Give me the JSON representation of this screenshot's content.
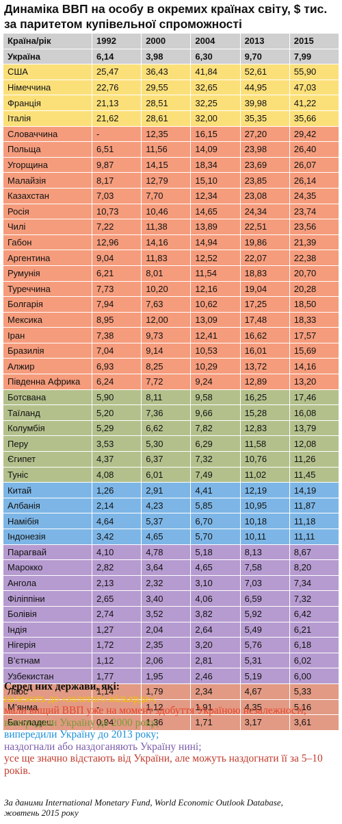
{
  "title": {
    "line1": "Динаміка ВВП на особу в окремих країнах світу, $ тис.",
    "line2": "за паритетом купівельної спроможності"
  },
  "table": {
    "headers": [
      "Країна/рік",
      "1992",
      "2000",
      "2004",
      "2013",
      "2015"
    ],
    "groups": {
      "ukraine": "#cfcfcf",
      "golden": "#fbe07a",
      "before": "#f59c7c",
      "y2000": "#b3c08c",
      "y2013": "#7db6e6",
      "catching": "#b69bd0",
      "future": "#e29a84"
    },
    "rows": [
      {
        "group": "ukraine",
        "cells": [
          "Україна",
          "6,14",
          "3,98",
          "6,30",
          "9,70",
          "7,99"
        ]
      },
      {
        "group": "golden",
        "cells": [
          "США",
          "25,47",
          "36,43",
          "41,84",
          "52,61",
          "55,90"
        ]
      },
      {
        "group": "golden",
        "cells": [
          "Німеччина",
          "22,76",
          "29,55",
          "32,65",
          "44,95",
          "47,03"
        ]
      },
      {
        "group": "golden",
        "cells": [
          "Франція",
          "21,13",
          "28,51",
          "32,25",
          "39,98",
          "41,22"
        ]
      },
      {
        "group": "golden",
        "cells": [
          "Італія",
          "21,62",
          "28,61",
          "32,00",
          "35,35",
          "35,66"
        ]
      },
      {
        "group": "before",
        "cells": [
          "Словаччина",
          "-",
          "12,35",
          "16,15",
          "27,20",
          "29,42"
        ]
      },
      {
        "group": "before",
        "cells": [
          "Польща",
          "6,51",
          "11,56",
          "14,09",
          "23,98",
          "26,40"
        ]
      },
      {
        "group": "before",
        "cells": [
          "Угорщина",
          "9,87",
          "14,15",
          "18,34",
          "23,69",
          "26,07"
        ]
      },
      {
        "group": "before",
        "cells": [
          "Малайзія",
          "8,17",
          "12,79",
          "15,10",
          "23,85",
          "26,14"
        ]
      },
      {
        "group": "before",
        "cells": [
          "Казахстан",
          "7,03",
          "7,70",
          "12,34",
          "23,08",
          "24,35"
        ]
      },
      {
        "group": "before",
        "cells": [
          "Росія",
          "10,73",
          "10,46",
          "14,65",
          "24,34",
          "23,74"
        ]
      },
      {
        "group": "before",
        "cells": [
          "Чилі",
          "7,22",
          "11,38",
          "13,89",
          "22,51",
          "23,56"
        ]
      },
      {
        "group": "before",
        "cells": [
          "Габон",
          "12,96",
          "14,16",
          "14,94",
          "19,86",
          "21,39"
        ]
      },
      {
        "group": "before",
        "cells": [
          "Аргентина",
          "9,04",
          "11,83",
          "12,52",
          "22,07",
          "22,38"
        ]
      },
      {
        "group": "before",
        "cells": [
          "Румунія",
          "6,21",
          "8,01",
          "11,54",
          "18,83",
          "20,70"
        ]
      },
      {
        "group": "before",
        "cells": [
          "Туреччина",
          "7,73",
          "10,20",
          "12,16",
          "19,04",
          "20,28"
        ]
      },
      {
        "group": "before",
        "cells": [
          "Болгарія",
          "7,94",
          "7,63",
          "10,62",
          "17,25",
          "18,50"
        ]
      },
      {
        "group": "before",
        "cells": [
          "Мексика",
          "8,95",
          "12,00",
          "13,09",
          "17,48",
          "18,33"
        ]
      },
      {
        "group": "before",
        "cells": [
          "Іран",
          "7,38",
          "9,73",
          "12,41",
          "16,62",
          "17,57"
        ]
      },
      {
        "group": "before",
        "cells": [
          "Бразилія",
          "7,04",
          "9,14",
          "10,53",
          "16,01",
          "15,69"
        ]
      },
      {
        "group": "before",
        "cells": [
          "Алжир",
          "6,93",
          "8,25",
          "10,29",
          "13,72",
          "14,16"
        ]
      },
      {
        "group": "before",
        "cells": [
          "Південна Африка",
          "6,24",
          "7,72",
          "9,24",
          "12,89",
          "13,20"
        ]
      },
      {
        "group": "y2000",
        "cells": [
          "Ботсвана",
          "5,90",
          "8,11",
          "9,58",
          "16,25",
          "17,46"
        ]
      },
      {
        "group": "y2000",
        "cells": [
          "Таїланд",
          "5,20",
          "7,36",
          "9,66",
          "15,28",
          "16,08"
        ]
      },
      {
        "group": "y2000",
        "cells": [
          "Колумбія",
          "5,29",
          "6,62",
          "7,82",
          "12,83",
          "13,79"
        ]
      },
      {
        "group": "y2000",
        "cells": [
          "Перу",
          "3,53",
          "5,30",
          "6,29",
          "11,58",
          "12,08"
        ]
      },
      {
        "group": "y2000",
        "cells": [
          "Єгипет",
          "4,37",
          "6,37",
          "7,32",
          "10,76",
          "11,26"
        ]
      },
      {
        "group": "y2000",
        "cells": [
          "Туніс",
          "4,08",
          "6,01",
          "7,49",
          "11,02",
          "11,45"
        ]
      },
      {
        "group": "y2013",
        "cells": [
          "Китай",
          "1,26",
          "2,91",
          "4,41",
          "12,19",
          "14,19"
        ]
      },
      {
        "group": "y2013",
        "cells": [
          "Албанія",
          "2,14",
          "4,23",
          "5,85",
          "10,95",
          "11,87"
        ]
      },
      {
        "group": "y2013",
        "cells": [
          "Намібія",
          "4,64",
          "5,37",
          "6,70",
          "10,18",
          "11,18"
        ]
      },
      {
        "group": "y2013",
        "cells": [
          "Індонезія",
          "3,42",
          "4,65",
          "5,70",
          "10,11",
          "11,11"
        ]
      },
      {
        "group": "catching",
        "cells": [
          "Парагвай",
          "4,10",
          "4,78",
          "5,18",
          "8,13",
          "8,67"
        ]
      },
      {
        "group": "catching",
        "cells": [
          "Марокко",
          "2,82",
          "3,64",
          "4,65",
          "7,58",
          "8,20"
        ]
      },
      {
        "group": "catching",
        "cells": [
          "Ангола",
          "2,13",
          "2,32",
          "3,10",
          "7,03",
          "7,34"
        ]
      },
      {
        "group": "catching",
        "cells": [
          "Філіппіни",
          "2,65",
          "3,40",
          "4,06",
          "6,59",
          "7,32"
        ]
      },
      {
        "group": "catching",
        "cells": [
          "Болівія",
          "2,74",
          "3,52",
          "3,82",
          "5,92",
          "6,42"
        ]
      },
      {
        "group": "catching",
        "cells": [
          "Індія",
          "1,27",
          "2,04",
          "2,64",
          "5,49",
          "6,21"
        ]
      },
      {
        "group": "catching",
        "cells": [
          "Нігерія",
          "1,72",
          "2,35",
          "3,20",
          "5,76",
          "6,18"
        ]
      },
      {
        "group": "catching",
        "cells": [
          "В’єтнам",
          "1,12",
          "2,06",
          "2,81",
          "5,31",
          "6,02"
        ]
      },
      {
        "group": "catching",
        "cells": [
          "Узбекистан",
          "1,77",
          "1,95",
          "2,46",
          "5,19",
          "6,00"
        ]
      },
      {
        "group": "future",
        "cells": [
          "Лаос",
          "1,14",
          "1,79",
          "2,34",
          "4,67",
          "5,33"
        ]
      },
      {
        "group": "future",
        "cells": [
          "М’янма",
          "-",
          "1,12",
          "1,91",
          "4,35",
          "5,16"
        ]
      },
      {
        "group": "future",
        "cells": [
          "Бангладеш",
          "0,94",
          "1,36",
          "1,71",
          "3,17",
          "3,61"
        ]
      }
    ]
  },
  "legend": {
    "heading": "Серед них держави, які:",
    "items": [
      {
        "text": "належать до «золотого мільярда»;",
        "color": "#f2c200"
      },
      {
        "text": "мали вищий ВВП уже на момент здобуття Україною незалежності;",
        "color": "#e8442a"
      },
      {
        "text": "випередили Україну до 2000 року;",
        "color": "#7a9a3a"
      },
      {
        "text": "випередили Україну до 2013 року;",
        "color": "#1a8fd8"
      },
      {
        "text": "наздогнали або наздоганяють Україну нині;",
        "color": "#7a5aa8"
      },
      {
        "text": "усе ще значно відстають від України, але можуть наздогнати її за 5–10 років.",
        "color": "#c0392b"
      }
    ]
  },
  "source": {
    "line1": "За даними International Monetary Fund, World Economic Outlook Database,",
    "line2": "жовтень 2015 року"
  }
}
